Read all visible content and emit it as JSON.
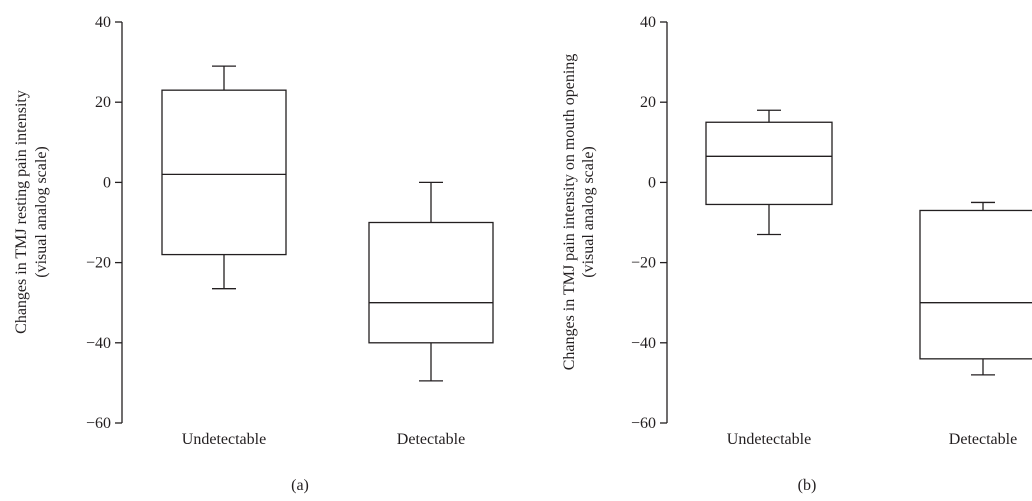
{
  "chart_data": [
    {
      "type": "box",
      "panel_label": "(a)",
      "ylabel_lines": [
        "Changes in TMJ resting pain intensity",
        "(visual analog scale)"
      ],
      "ylim": [
        -60,
        40
      ],
      "yticks": [
        40,
        20,
        0,
        -20,
        -40,
        -60
      ],
      "ytick_labels": [
        "40",
        "20",
        "0",
        "−20",
        "−40",
        "−60"
      ],
      "categories": [
        "Undetectable",
        "Detectable"
      ],
      "boxes": [
        {
          "category": "Undetectable",
          "whisker_low": -26.5,
          "q1": -18,
          "median": 2,
          "q3": 23,
          "whisker_high": 29
        },
        {
          "category": "Detectable",
          "whisker_low": -49.5,
          "q1": -40,
          "median": -30,
          "q3": -10,
          "whisker_high": 0
        }
      ]
    },
    {
      "type": "box",
      "panel_label": "(b)",
      "ylabel_lines": [
        "Changes in TMJ pain intensity on mouth opening",
        "(visual analog scale)"
      ],
      "ylim": [
        -60,
        40
      ],
      "yticks": [
        40,
        20,
        0,
        -20,
        -40,
        -60
      ],
      "ytick_labels": [
        "40",
        "20",
        "0",
        "−20",
        "−40",
        "−60"
      ],
      "categories": [
        "Undetectable",
        "Detectable"
      ],
      "boxes": [
        {
          "category": "Undetectable",
          "whisker_low": -13,
          "q1": -5.5,
          "median": 6.5,
          "q3": 15,
          "whisker_high": 18
        },
        {
          "category": "Detectable",
          "whisker_low": -48,
          "q1": -44,
          "median": -30,
          "q3": -7,
          "whisker_high": -5
        }
      ]
    }
  ]
}
